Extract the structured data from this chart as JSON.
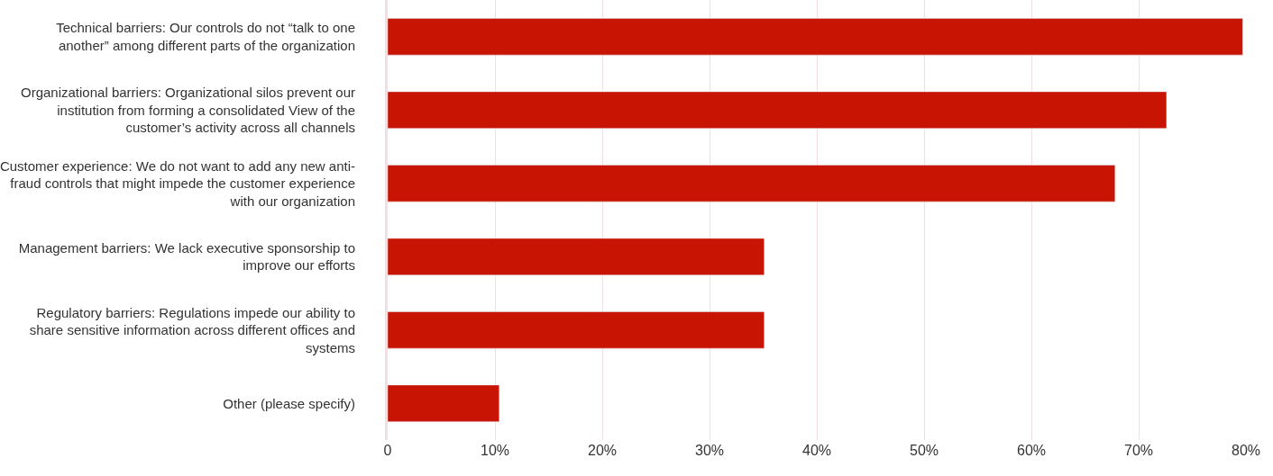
{
  "chart_data": {
    "type": "bar",
    "orientation": "horizontal",
    "categories": [
      "Technical barriers: Our controls do not “talk to one another” among different parts of the organization",
      "Organizational barriers: Organizational silos prevent our institution from forming a consolidated View of the customer’s activity across all channels",
      "Customer experience: We do not want to add any new anti-fraud controls that might impede the customer experience with our organization",
      "Management barriers: We lack executive sponsorship to improve our efforts",
      "Regulatory barriers: Regulations impede our ability to share sensitive information across different offices and systems",
      "Other (please specify)"
    ],
    "values": [
      79.7,
      72.6,
      67.8,
      35.1,
      35.1,
      10.4
    ],
    "color": "#c81402",
    "xlim": [
      0,
      80
    ],
    "xticks": [
      0,
      {
        "value": 10,
        "label": "10%"
      },
      {
        "value": 20,
        "label": "20%"
      },
      {
        "value": 30,
        "label": "30%"
      },
      {
        "value": 40,
        "label": "40%"
      },
      {
        "value": 50,
        "label": "50%"
      },
      {
        "value": 60,
        "label": "60%"
      },
      {
        "value": 70,
        "label": "70%"
      },
      {
        "value": 80,
        "label": "80%"
      }
    ],
    "grid": "x",
    "legend": false
  }
}
